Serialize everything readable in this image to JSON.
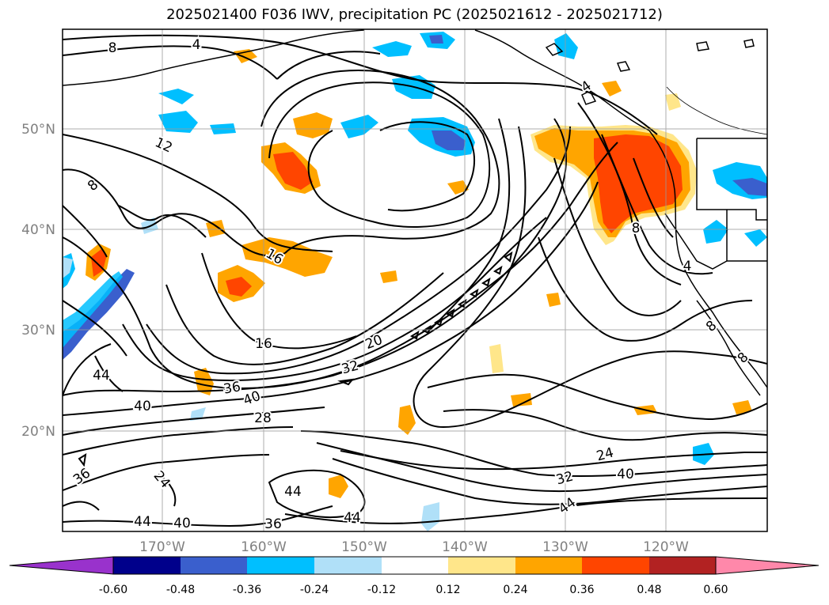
{
  "title": "2025021400 F036 IWV, precipitation PC (2025021612 - 2025021712)",
  "axes": {
    "lat_ticks": [
      "50°N",
      "40°N",
      "30°N",
      "20°N"
    ],
    "lon_ticks": [
      "170°W",
      "160°W",
      "150°W",
      "140°W",
      "130°W",
      "120°W"
    ],
    "tick_color": "#808080"
  },
  "contour_labels": [
    {
      "text": "8",
      "at": "upper-left"
    },
    {
      "text": "4",
      "at": "top"
    },
    {
      "text": "12",
      "at": "left"
    },
    {
      "text": "8",
      "at": "far-left"
    },
    {
      "text": "16",
      "at": "center-left"
    },
    {
      "text": "16",
      "at": "lower-center-left"
    },
    {
      "text": "20",
      "at": "center"
    },
    {
      "text": "32",
      "at": "center"
    },
    {
      "text": "36",
      "at": "lower-left"
    },
    {
      "text": "40",
      "at": "lower-left"
    },
    {
      "text": "28",
      "at": "lower-left"
    },
    {
      "text": "44",
      "at": "left"
    },
    {
      "text": "40",
      "at": "left"
    },
    {
      "text": "36",
      "at": "bottom-left"
    },
    {
      "text": "24",
      "at": "bottom-left"
    },
    {
      "text": "44",
      "at": "bottom"
    },
    {
      "text": "40",
      "at": "bottom-left"
    },
    {
      "text": "36",
      "at": "bottom-left"
    },
    {
      "text": "44",
      "at": "bottom"
    },
    {
      "text": "44",
      "at": "bottom"
    },
    {
      "text": "24",
      "at": "right"
    },
    {
      "text": "32",
      "at": "right"
    },
    {
      "text": "40",
      "at": "right"
    },
    {
      "text": "44",
      "at": "bottom-right"
    },
    {
      "text": "4",
      "at": "upper-right"
    },
    {
      "text": "8",
      "at": "right"
    },
    {
      "text": "4",
      "at": "right"
    },
    {
      "text": "8",
      "at": "right"
    },
    {
      "text": "8",
      "at": "right"
    }
  ],
  "colorbar": {
    "labels": [
      "-0.60",
      "-0.48",
      "-0.36",
      "-0.24",
      "-0.12",
      "0.12",
      "0.24",
      "0.36",
      "0.48",
      "0.60"
    ],
    "colors": [
      "#9932cc",
      "#00008b",
      "#3a5fcd",
      "#00bfff",
      "#b0e0f8",
      "#ffffff",
      "#ffe68a",
      "#ffa500",
      "#ff4500",
      "#b22222",
      "#ff88aa"
    ]
  },
  "shading_colors": {
    "light_blue": "#b0e0f8",
    "blue": "#00bfff",
    "mid_blue": "#3a5fcd",
    "dark_blue": "#00008b",
    "yellow": "#ffe68a",
    "orange": "#ffa500",
    "red_orange": "#ff4500"
  }
}
